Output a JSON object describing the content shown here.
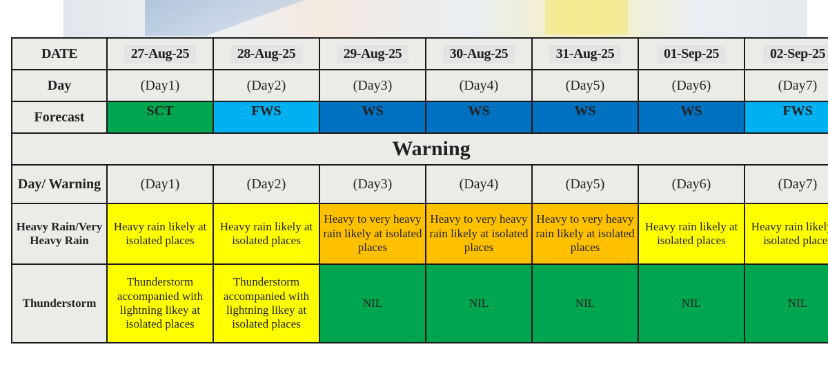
{
  "header": {
    "date_label": "DATE",
    "day_label": "Day",
    "forecast_label": "Forecast"
  },
  "dates": [
    "27-Aug-25",
    "28-Aug-25",
    "29-Aug-25",
    "30-Aug-25",
    "31-Aug-25",
    "01-Sep-25",
    "02-Sep-25"
  ],
  "days": [
    "(Day1)",
    "(Day2)",
    "(Day3)",
    "(Day4)",
    "(Day5)",
    "(Day6)",
    "(Day7)"
  ],
  "forecast": [
    {
      "code": "SCT",
      "color": "#00a550"
    },
    {
      "code": "FWS",
      "color": "#00b0f0"
    },
    {
      "code": "WS",
      "color": "#0070c0"
    },
    {
      "code": "WS",
      "color": "#0070c0"
    },
    {
      "code": "WS",
      "color": "#0070c0"
    },
    {
      "code": "WS",
      "color": "#0070c0"
    },
    {
      "code": "FWS",
      "color": "#00b0f0"
    }
  ],
  "warning": {
    "title": "Warning",
    "day_warning_label": "Day/ Warning",
    "days": [
      "(Day1)",
      "(Day2)",
      "(Day3)",
      "(Day4)",
      "(Day5)",
      "(Day6)",
      "(Day7)"
    ],
    "heavy_rain": {
      "label": "Heavy Rain/Very Heavy Rain",
      "cells": [
        {
          "text": "Heavy rain likely at isolated places",
          "color": "#ffff00"
        },
        {
          "text": "Heavy rain likely at isolated places",
          "color": "#ffff00"
        },
        {
          "text": "Heavy to very heavy rain likely at isolated places",
          "color": "#ffc000"
        },
        {
          "text": "Heavy to very heavy rain likely at isolated places",
          "color": "#ffc000"
        },
        {
          "text": "Heavy to very heavy rain likely at isolated places",
          "color": "#ffc000"
        },
        {
          "text": "Heavy rain likely at isolated places",
          "color": "#ffff00"
        },
        {
          "text": "Heavy rain likely at isolated places",
          "color": "#ffff00"
        }
      ]
    },
    "thunderstorm": {
      "label": "Thunderstorm",
      "cells": [
        {
          "text": "Thunderstorm accompanied with lightning likey at isolated places",
          "color": "#ffff00"
        },
        {
          "text": "Thunderstorm accompanied with lightning likey at isolated places",
          "color": "#ffff00"
        },
        {
          "text": "NIL",
          "color": "#00a550"
        },
        {
          "text": "NIL",
          "color": "#00a550"
        },
        {
          "text": "NIL",
          "color": "#00a550"
        },
        {
          "text": "NIL",
          "color": "#00a550"
        },
        {
          "text": "NIL",
          "color": "#00a550"
        }
      ]
    }
  }
}
